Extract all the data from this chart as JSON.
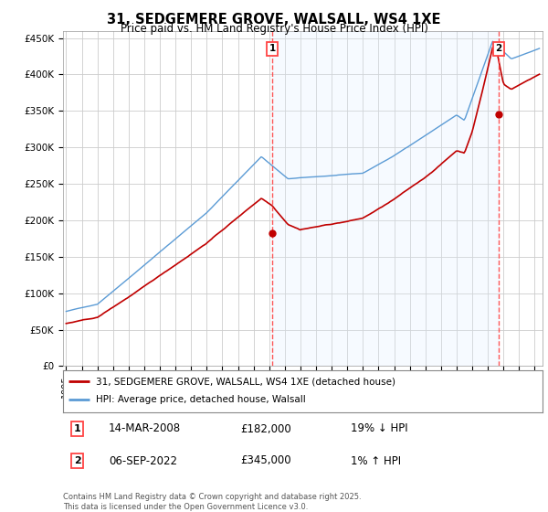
{
  "title": "31, SEDGEMERE GROVE, WALSALL, WS4 1XE",
  "subtitle": "Price paid vs. HM Land Registry's House Price Index (HPI)",
  "yticks": [
    0,
    50000,
    100000,
    150000,
    200000,
    250000,
    300000,
    350000,
    400000,
    450000
  ],
  "ytick_labels": [
    "£0",
    "£50K",
    "£100K",
    "£150K",
    "£200K",
    "£250K",
    "£300K",
    "£350K",
    "£400K",
    "£450K"
  ],
  "ylim": [
    0,
    460000
  ],
  "xlim_start": 1994.8,
  "xlim_end": 2025.5,
  "hpi_color": "#5b9bd5",
  "price_color": "#c00000",
  "vline_color": "#ff4444",
  "shade_color": "#ddeeff",
  "marker1_x": 2008.2,
  "marker1_y": 182000,
  "marker2_x": 2022.68,
  "marker2_y": 345000,
  "legend_items": [
    {
      "label": "31, SEDGEMERE GROVE, WALSALL, WS4 1XE (detached house)",
      "color": "#c00000"
    },
    {
      "label": "HPI: Average price, detached house, Walsall",
      "color": "#5b9bd5"
    }
  ],
  "annotation1_date": "14-MAR-2008",
  "annotation1_price": "£182,000",
  "annotation1_hpi": "19% ↓ HPI",
  "annotation2_date": "06-SEP-2022",
  "annotation2_price": "£345,000",
  "annotation2_hpi": "1% ↑ HPI",
  "footer": "Contains HM Land Registry data © Crown copyright and database right 2025.\nThis data is licensed under the Open Government Licence v3.0.",
  "background_color": "#ffffff",
  "grid_color": "#cccccc"
}
